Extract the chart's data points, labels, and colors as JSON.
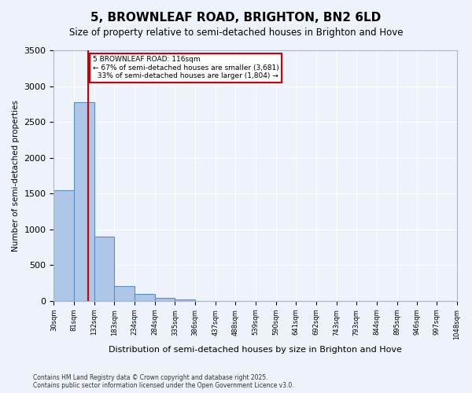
{
  "title": "5, BROWNLEAF ROAD, BRIGHTON, BN2 6LD",
  "subtitle": "Size of property relative to semi-detached houses in Brighton and Hove",
  "xlabel": "Distribution of semi-detached houses by size in Brighton and Hove",
  "ylabel": "Number of semi-detached properties",
  "property_size": 116,
  "property_label": "5 BROWNLEAF ROAD: 116sqm",
  "pct_smaller": 67,
  "count_smaller": 3681,
  "pct_larger": 33,
  "count_larger": 1804,
  "bar_values": [
    1543,
    2780,
    900,
    210,
    95,
    40,
    17,
    0,
    0,
    0,
    0,
    0,
    0,
    0,
    0,
    0,
    0,
    0,
    0,
    0
  ],
  "bin_edges": [
    30,
    81,
    132,
    183,
    234,
    285,
    336,
    387,
    438,
    489,
    540,
    591,
    642,
    693,
    744,
    795,
    846,
    897,
    948,
    997,
    1048
  ],
  "tick_labels": [
    "30sqm",
    "81sqm",
    "132sqm",
    "183sqm",
    "234sqm",
    "284sqm",
    "335sqm",
    "386sqm",
    "437sqm",
    "488sqm",
    "539sqm",
    "590sqm",
    "641sqm",
    "692sqm",
    "743sqm",
    "793sqm",
    "844sqm",
    "895sqm",
    "946sqm",
    "997sqm",
    "1048sqm"
  ],
  "bar_color": "#aec6e8",
  "bar_edge_color": "#5a8fc0",
  "vline_color": "#cc0000",
  "annotation_box_color": "#cc0000",
  "background_color": "#eef2fb",
  "grid_color": "#ffffff",
  "ylim": [
    0,
    3500
  ],
  "yticks": [
    0,
    500,
    1000,
    1500,
    2000,
    2500,
    3000,
    3500
  ],
  "footer_line1": "Contains HM Land Registry data © Crown copyright and database right 2025.",
  "footer_line2": "Contains public sector information licensed under the Open Government Licence v3.0."
}
